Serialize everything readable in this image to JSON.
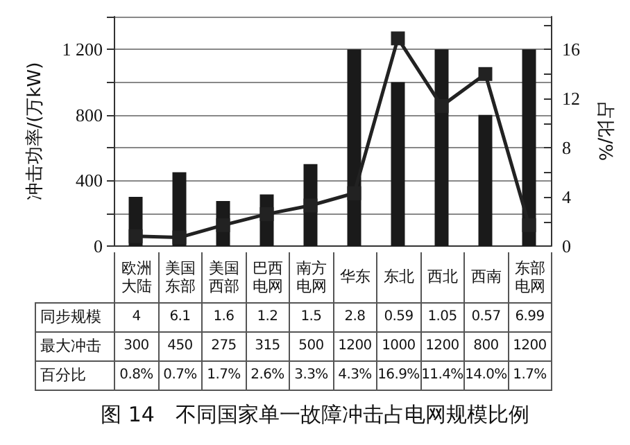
{
  "chart_data": {
    "type": "bar",
    "title": "图 14　不同国家单一故障冲击占电网规模比例",
    "ylabel": "冲击功率/(万kW)",
    "y2label": "占比/%",
    "categories": [
      "欧洲大陆",
      "美国东部",
      "美国西部",
      "巴西电网",
      "南方电网",
      "华东",
      "东北",
      "西北",
      "西南",
      "东部电网"
    ],
    "series": [
      {
        "color": "#1a1a1a",
        "values": [
          300,
          450,
          275,
          315,
          500,
          1200,
          1000,
          1200,
          800,
          1200
        ],
        "value_labels": [
          "300",
          "450",
          "275",
          "315",
          "500",
          "1200",
          "1000",
          "1200",
          "800",
          "1200"
        ]
      },
      {
        "type": "line",
        "axis": "y2",
        "color": "#222222",
        "marker": "square",
        "values": [
          0.8,
          0.7,
          1.7,
          2.6,
          3.3,
          4.3,
          16.9,
          11.4,
          14.0,
          1.7
        ],
        "value_labels": [
          "0.8%",
          "0.7%",
          "1.7%",
          "2.6%",
          "3.3%",
          "4.3%",
          "16.9%",
          "11.4%",
          "14.0%",
          "1.7%"
        ]
      }
    ],
    "ylim": [
      0,
      1400
    ],
    "yticks": [
      0,
      {
        "value": 200,
        "label": null
      },
      400,
      {
        "value": 600,
        "label": null
      },
      800,
      {
        "value": 1000,
        "label": null
      },
      {
        "value": 1200,
        "label": "1 200"
      },
      {
        "value": 1400,
        "label": null
      }
    ],
    "y2lim": [
      0,
      18.67
    ],
    "y2ticks": [
      0,
      {
        "value": 2,
        "label": null
      },
      4,
      {
        "value": 6,
        "label": null
      },
      8,
      {
        "value": 10,
        "label": null
      },
      12,
      {
        "value": 14,
        "label": null
      },
      16,
      {
        "value": 18,
        "label": null
      }
    ],
    "annotations": [
      "同步规模",
      "4",
      "6.1",
      "1.6",
      "1.2",
      "1.5",
      "2.8",
      "0.59",
      "1.05",
      "0.57",
      "6.99",
      "最大冲击",
      "百分比"
    ],
    "grid": "y"
  }
}
